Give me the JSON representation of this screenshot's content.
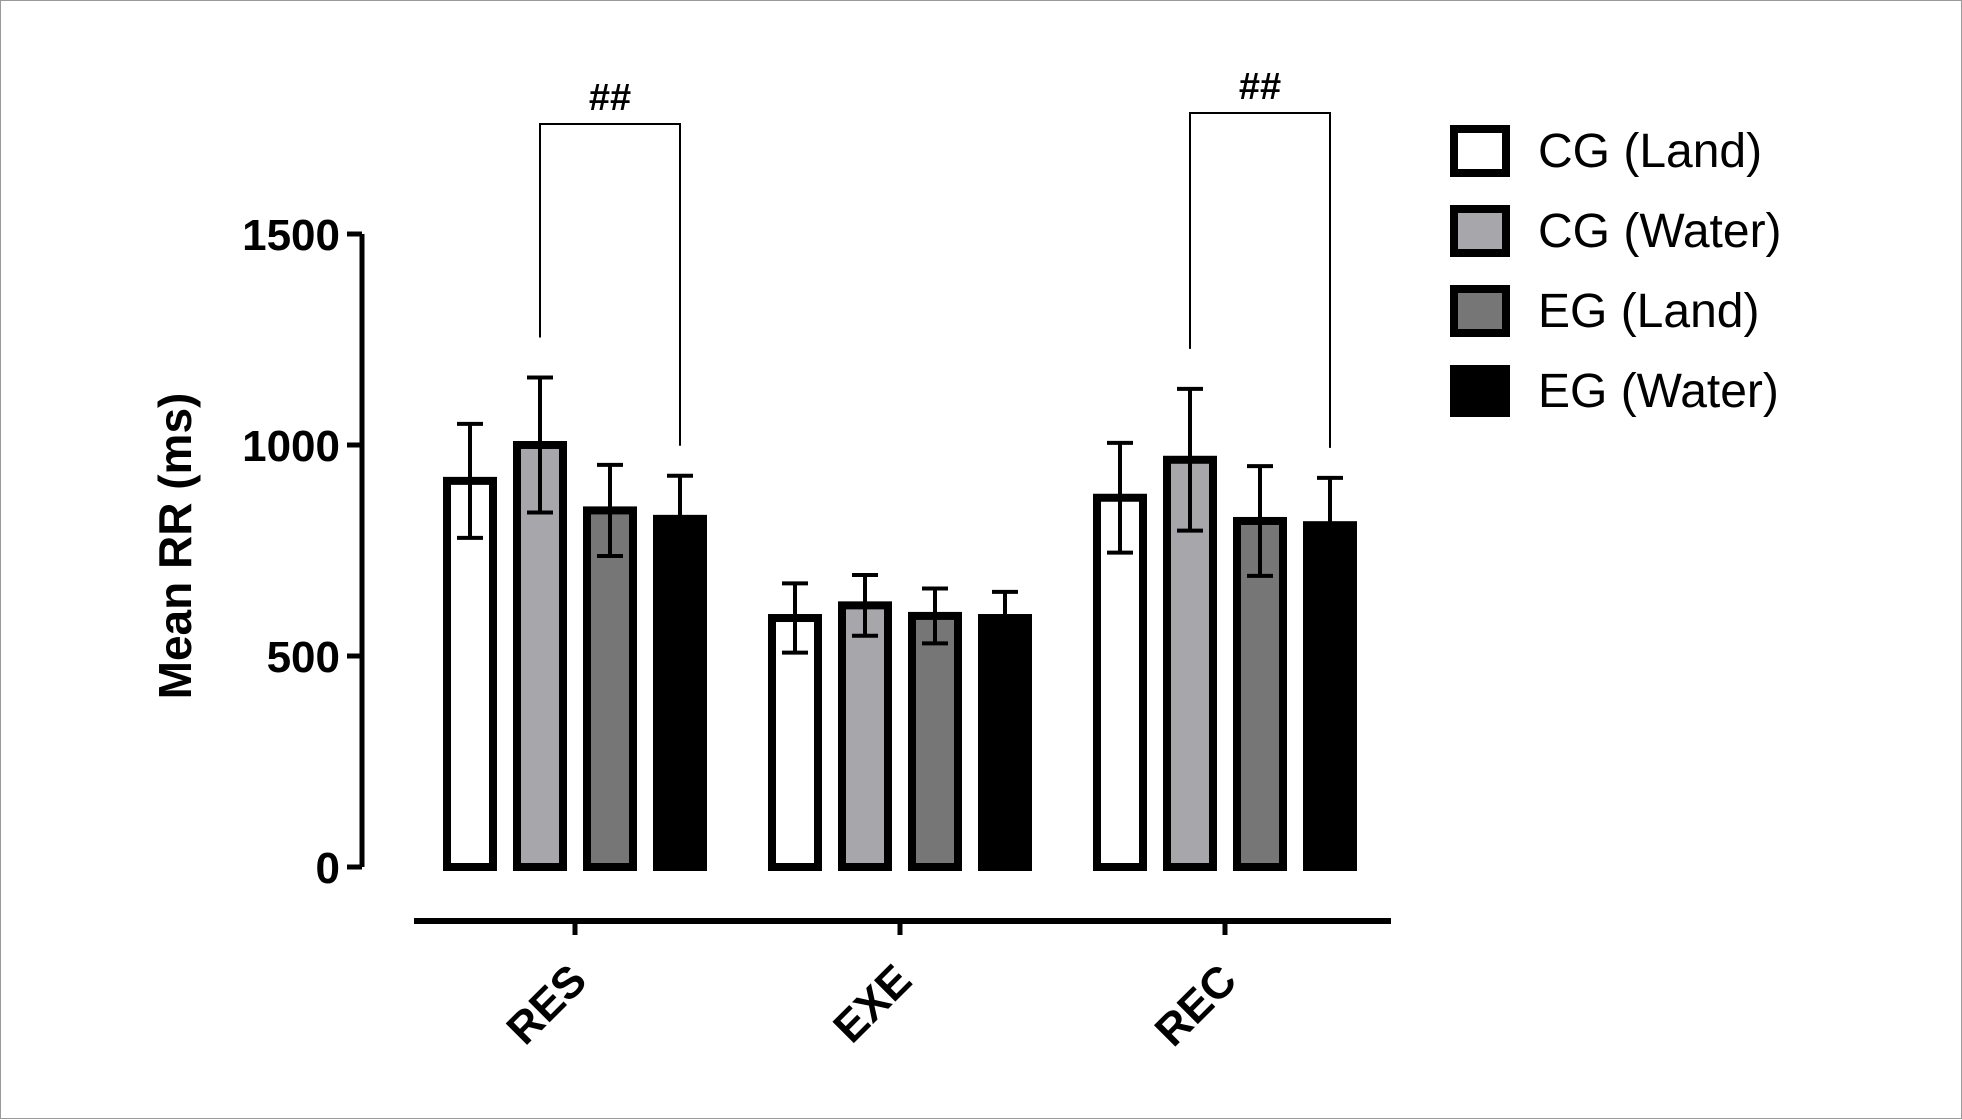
{
  "chart_data": {
    "type": "bar",
    "ylabel": "Mean  RR (ms)",
    "xlabel": "",
    "ylim": [
      0,
      1500
    ],
    "yticks": [
      0,
      500,
      1000,
      1500
    ],
    "categories": [
      "RES",
      "EXE",
      "REC"
    ],
    "series": [
      {
        "name": "CG (Land)",
        "fill": "#ffffff",
        "values": [
          915,
          590,
          875
        ],
        "errors": [
          135,
          82,
          130
        ]
      },
      {
        "name": "CG (Water)",
        "fill": "#a7a7ab",
        "values": [
          1000,
          620,
          965
        ],
        "errors": [
          160,
          72,
          168
        ]
      },
      {
        "name": "EG (Land)",
        "fill": "#767676",
        "values": [
          845,
          595,
          820
        ],
        "errors": [
          108,
          65,
          130
        ]
      },
      {
        "name": "EG (Water)",
        "fill": "#000000",
        "values": [
          825,
          590,
          810
        ],
        "errors": [
          102,
          62,
          112
        ]
      }
    ],
    "annotations": [
      {
        "text": "##",
        "category": "RES",
        "from_series": 1,
        "to_series": 3
      },
      {
        "text": "##",
        "category": "REC",
        "from_series": 1,
        "to_series": 3
      }
    ],
    "legend_position": "top-right",
    "grid": false
  }
}
